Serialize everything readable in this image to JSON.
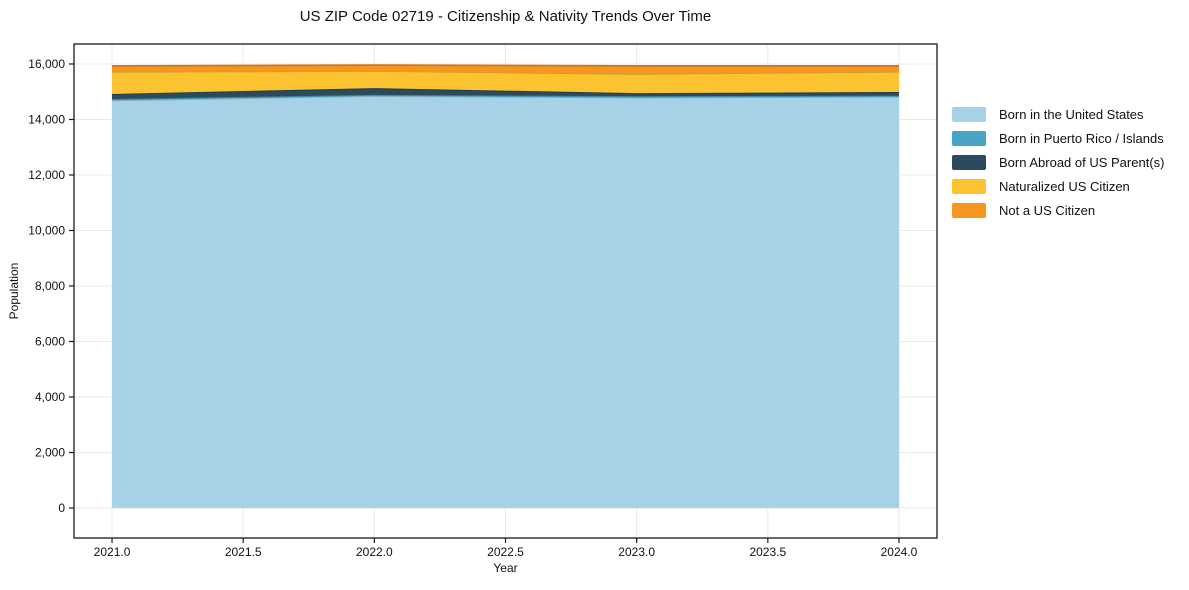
{
  "chart_data": {
    "type": "area",
    "stacked": true,
    "title": "US ZIP Code 02719 - Citizenship & Nativity Trends Over Time",
    "xlabel": "Year",
    "ylabel": "Population",
    "x": [
      2021,
      2022,
      2023,
      2024
    ],
    "series": [
      {
        "name": "Born in the United States",
        "color": "#a6d1e6",
        "values": [
          14690,
          14850,
          14790,
          14820
        ]
      },
      {
        "name": "Born in Puerto Rico / Islands",
        "color": "#47a4c4",
        "values": [
          50,
          40,
          50,
          40
        ]
      },
      {
        "name": "Born Abroad of US Parent(s)",
        "color": "#2b4a5c",
        "values": [
          180,
          240,
          110,
          130
        ]
      },
      {
        "name": "Naturalized US Citizen",
        "color": "#fcc330",
        "values": [
          800,
          620,
          690,
          730
        ]
      },
      {
        "name": "Not a US Citizen",
        "color": "#f79521",
        "values": [
          210,
          210,
          290,
          210
        ]
      }
    ],
    "stack_totals": [
      15930,
      15960,
      15930,
      15930
    ],
    "xlim": [
      2020.855,
      2024.145
    ],
    "ylim": [
      -1080,
      16720
    ],
    "xticks": {
      "values": [
        2021,
        2021.5,
        2022,
        2022.5,
        2023,
        2023.5,
        2024
      ],
      "labels": [
        "2021.0",
        "2021.5",
        "2022.0",
        "2022.5",
        "2023.0",
        "2023.5",
        "2024.0"
      ]
    },
    "yticks": {
      "values": [
        0,
        2000,
        4000,
        6000,
        8000,
        10000,
        12000,
        14000,
        16000
      ],
      "labels": [
        "0",
        "2,000",
        "4,000",
        "6,000",
        "8,000",
        "10,000",
        "12,000",
        "14,000",
        "16,000"
      ]
    },
    "grid": true,
    "legend_position": "right"
  },
  "style": {
    "grid_color": "#e9e9e9",
    "spine_color": "#1a1a1a",
    "tick_color": "#1a1a1a",
    "text_color": "#111111",
    "background": "#ffffff"
  }
}
